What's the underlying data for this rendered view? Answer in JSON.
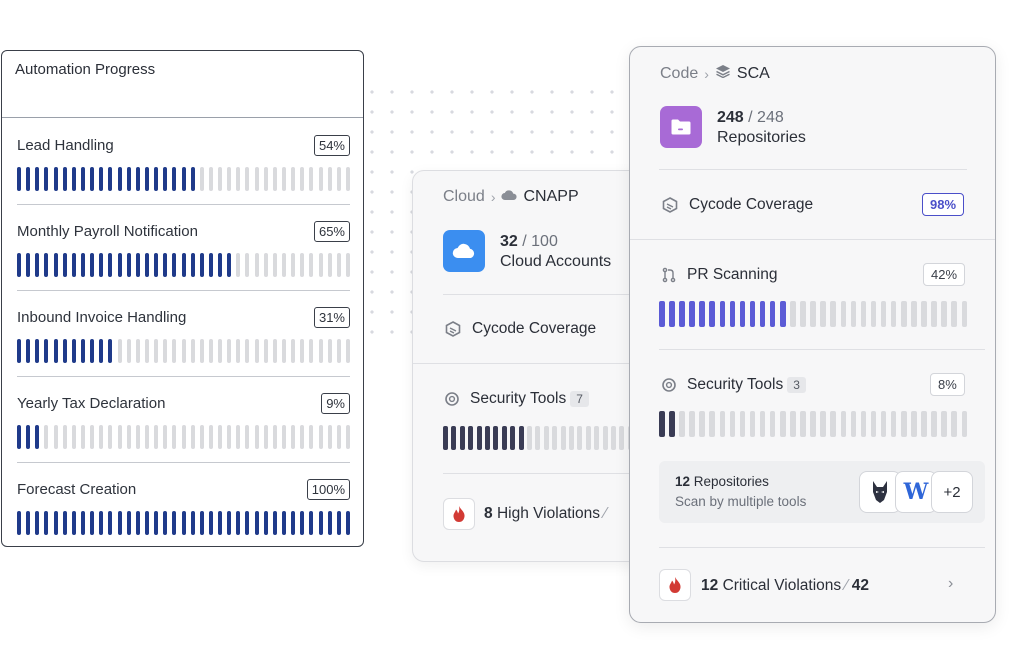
{
  "automation": {
    "title": "Automation Progress",
    "tasks": [
      {
        "name": "Lead Handling",
        "pct_label": "54%",
        "progress": 54
      },
      {
        "name": "Monthly Payroll Notification",
        "pct_label": "65%",
        "progress": 65
      },
      {
        "name": "Inbound Invoice Handling",
        "pct_label": "31%",
        "progress": 31
      },
      {
        "name": "Yearly Tax Declaration",
        "pct_label": "9%",
        "progress": 9
      },
      {
        "name": "Forecast Creation",
        "pct_label": "100%",
        "progress": 100
      }
    ]
  },
  "cloud": {
    "crumb_parent": "Cloud",
    "crumb_current": "CNAPP",
    "count": "32",
    "total": "100",
    "count_label": "Cloud Accounts",
    "coverage_label": "Cycode Coverage",
    "security_tools_label": "Security Tools",
    "security_tools_count": "7",
    "security_tools_progress": 40,
    "violations_count": "8",
    "violations_label": "High Violations"
  },
  "code": {
    "crumb_parent": "Code",
    "crumb_current": "SCA",
    "count": "248",
    "total": "248",
    "count_label": "Repositories",
    "coverage_label": "Cycode Coverage",
    "coverage_pct": "98%",
    "pr_label": "PR Scanning",
    "pr_pct": "42%",
    "pr_progress": 42,
    "security_tools_label": "Security Tools",
    "security_tools_count": "3",
    "security_tools_pct": "8%",
    "security_tools_progress": 8,
    "repos_count": "12",
    "repos_label": "Repositories",
    "repos_sub": "Scan by multiple tools",
    "tools_more": "+2",
    "tool_letter": "W",
    "critical_count": "12",
    "critical_label": "Critical Violations",
    "critical_total": "42"
  },
  "colors": {
    "navy": "#1f3a8a",
    "purple_bar": "#5b5bd6",
    "dark_bar": "#3a3c55",
    "empty_bar": "#d9dadd",
    "cloud_tile": "#3b8ef0",
    "folder_tile": "#a86ad6",
    "flame": "#d23a34"
  }
}
